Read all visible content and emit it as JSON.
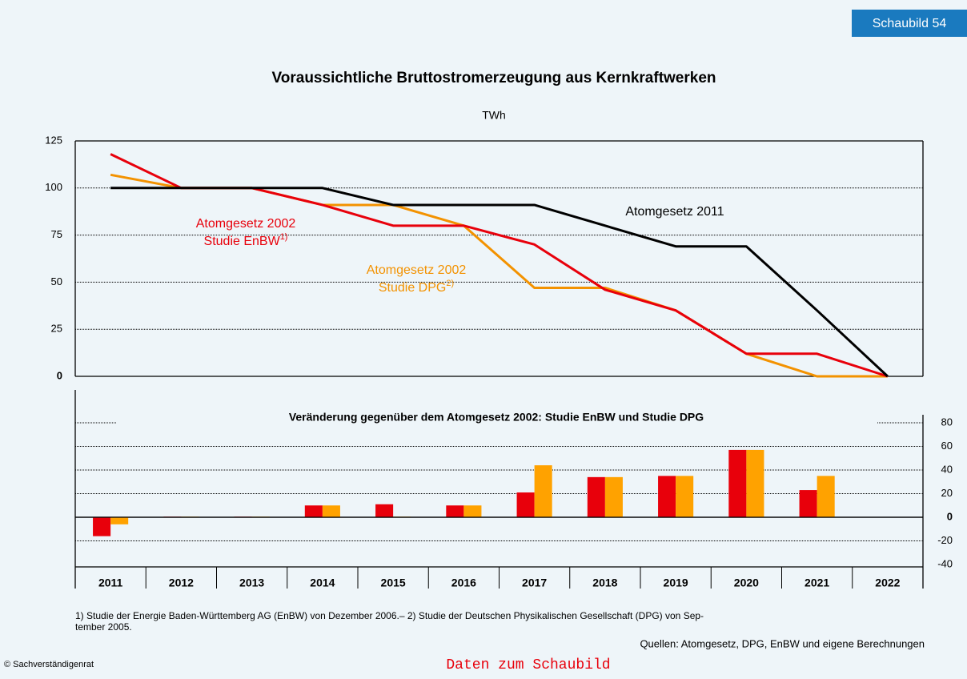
{
  "badge": "Schaubild 54",
  "chart_data": [
    {
      "type": "line",
      "title": "Voraussichtliche Bruttostromerzeugung aus Kernkraftwerken",
      "subtitle": "TWh",
      "ylim": [
        0,
        125
      ],
      "yticks": [
        0,
        25,
        50,
        75,
        100,
        125
      ],
      "grid": true,
      "series": [
        {
          "label": [
            "Atomgesetz 2011"
          ],
          "color": "#000000",
          "values": [
            100,
            100,
            100,
            100,
            91,
            91,
            91,
            80,
            69,
            69,
            35,
            0
          ]
        },
        {
          "label": [
            "Atomgesetz 2002",
            "Studie EnBW"
          ],
          "note": "1)",
          "color": "#e8000b",
          "values": [
            118,
            100,
            100,
            91,
            80,
            80,
            70,
            46,
            35,
            12,
            12,
            0
          ]
        },
        {
          "label": [
            "Atomgesetz 2002",
            "Studie DPG"
          ],
          "note": "2)",
          "color": "#f39200",
          "values": [
            107,
            100,
            100,
            91,
            91,
            80,
            47,
            47,
            35,
            12,
            0,
            0
          ]
        }
      ]
    },
    {
      "type": "bar",
      "title": "Veränderung gegenüber dem Atomgesetz 2002: Studie EnBW und Studie DPG",
      "categories": [
        "2011",
        "2012",
        "2013",
        "2014",
        "2015",
        "2016",
        "2017",
        "2018",
        "2019",
        "2020",
        "2021",
        "2022"
      ],
      "ylim": [
        -40,
        80
      ],
      "yticks": [
        80,
        60,
        40,
        20,
        0,
        -20,
        -40
      ],
      "grid": true,
      "series": [
        {
          "color": "#e8000b",
          "values": [
            -16,
            0.5,
            0.5,
            10,
            11,
            10,
            21,
            34,
            35,
            57,
            23,
            0
          ]
        },
        {
          "color": "#ffa200",
          "values": [
            -6,
            0.5,
            0.5,
            10,
            0.5,
            10,
            44,
            34,
            35,
            57,
            35,
            0
          ]
        }
      ]
    }
  ],
  "footnote": "1) Studie der Energie Baden-Württemberg AG (EnBW) von Dezember 2006.– 2) Studie der Deutschen Physikalischen Gesellschaft (DPG) von Sep-",
  "footnote_cont": "tember 2005.",
  "sources": "Quellen: Atomgesetz, DPG, EnBW und eigene Berechnungen",
  "copyright": "© Sachverständigenrat",
  "link": "Daten zum Schaubild"
}
